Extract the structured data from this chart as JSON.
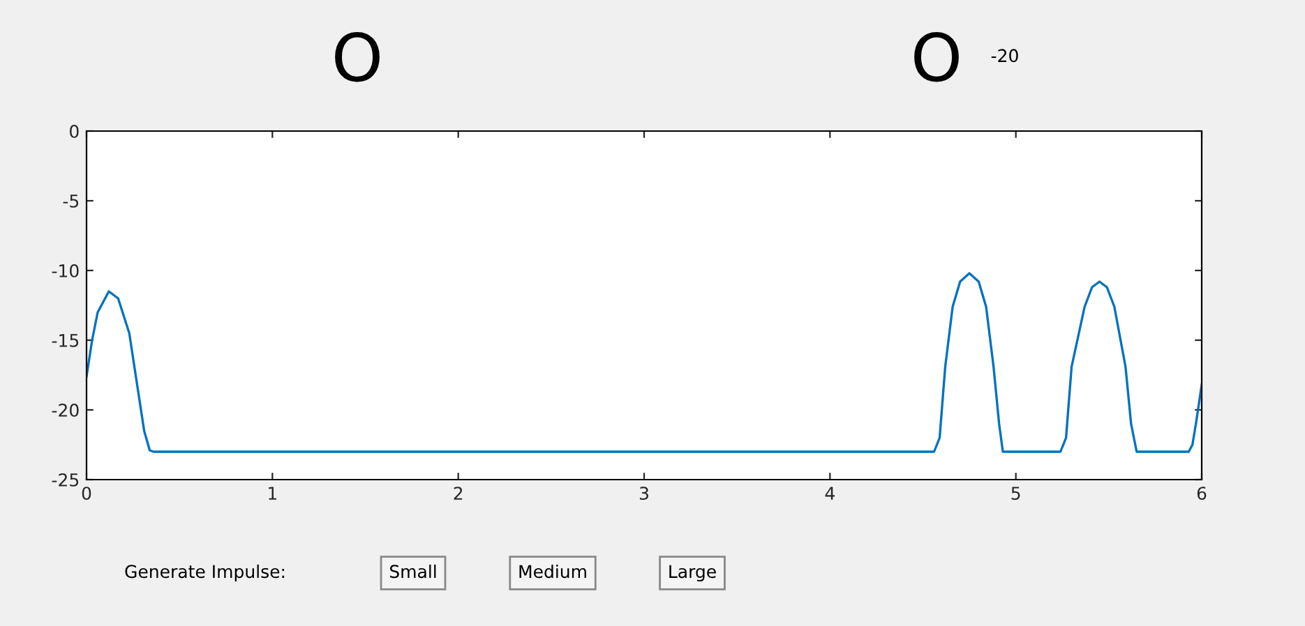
{
  "chart_data": {
    "type": "line",
    "x": [
      0,
      0.03,
      0.06,
      0.12,
      0.17,
      0.23,
      0.27,
      0.31,
      0.34,
      0.36,
      4.56,
      4.59,
      4.62,
      4.66,
      4.7,
      4.75,
      4.8,
      4.84,
      4.88,
      4.91,
      4.93,
      5.24,
      5.27,
      5.3,
      5.37,
      5.41,
      5.45,
      5.49,
      5.53,
      5.59,
      5.62,
      5.65,
      5.93,
      5.95,
      5.97,
      6.0
    ],
    "series": [
      {
        "color": "#0072bd",
        "values": [
          -17.6,
          -15,
          -13,
          -11.5,
          -12,
          -14.5,
          -18,
          -21.5,
          -22.9,
          -23,
          -23,
          -22,
          -16.9,
          -12.6,
          -10.8,
          -10.2,
          -10.8,
          -12.6,
          -16.9,
          -21,
          -23,
          -23,
          -22,
          -16.9,
          -12.6,
          -11.2,
          -10.8,
          -11.2,
          -12.6,
          -16.9,
          -21,
          -23,
          -23,
          -22.5,
          -20.9,
          -18.2
        ]
      }
    ],
    "xlim": [
      0,
      6
    ],
    "ylim": [
      -25,
      0
    ],
    "xticks": [
      0,
      1,
      2,
      3,
      4,
      5,
      6
    ],
    "yticks": [
      0,
      -5,
      -10,
      -15,
      -20,
      -25
    ],
    "grid": false,
    "marker": "none",
    "line_style": "solid",
    "annotations": [
      "O",
      "O",
      "-20",
      "Generate Impulse:",
      "Small",
      "Medium",
      "Large"
    ]
  }
}
